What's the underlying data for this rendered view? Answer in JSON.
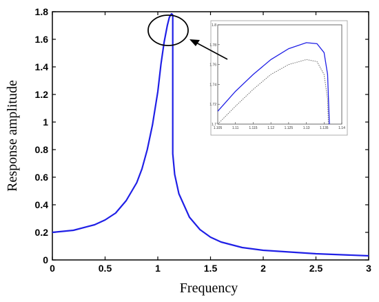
{
  "chart_data": [
    {
      "type": "line",
      "xlabel": "Frequency",
      "ylabel": "Response amplitude",
      "xlim": [
        0,
        3
      ],
      "ylim": [
        0,
        1.8
      ],
      "xticks": [
        "0",
        "0.5",
        "1",
        "1.5",
        "2",
        "2.5",
        "3"
      ],
      "yticks": [
        "0",
        "0.2",
        "0.4",
        "0.6",
        "0.8",
        "1",
        "1.2",
        "1.4",
        "1.6",
        "1.8"
      ],
      "grid": false,
      "series": [
        {
          "color": "#1f1fe6",
          "x": [
            0,
            0.2,
            0.4,
            0.5,
            0.6,
            0.7,
            0.8,
            0.85,
            0.9,
            0.95,
            1.0,
            1.03,
            1.06,
            1.09,
            1.11,
            1.13,
            1.14,
            1.142,
            1.142,
            1.16,
            1.2,
            1.3,
            1.4,
            1.5,
            1.6,
            1.8,
            2.0,
            2.5,
            3.0
          ],
          "y": [
            0.2,
            0.215,
            0.255,
            0.29,
            0.34,
            0.43,
            0.56,
            0.66,
            0.8,
            0.98,
            1.22,
            1.42,
            1.58,
            1.7,
            1.76,
            1.785,
            1.78,
            1.77,
            0.77,
            0.62,
            0.48,
            0.31,
            0.22,
            0.165,
            0.13,
            0.09,
            0.07,
            0.045,
            0.03
          ]
        }
      ],
      "annotations": [
        {
          "type": "ellipse",
          "around": "peak"
        },
        {
          "type": "arrow",
          "from": "inset",
          "to": "peak"
        }
      ]
    },
    {
      "type": "line",
      "role": "inset-zoom",
      "xlim": [
        1.105,
        1.14
      ],
      "ylim": [
        1.7,
        1.8
      ],
      "xticks": [
        "1.105",
        "1.11",
        "1.115",
        "1.12",
        "1.125",
        "1.13",
        "1.135",
        "1.14"
      ],
      "yticks": [
        "1.7",
        "1.72",
        "1.74",
        "1.76",
        "1.78",
        "1.8"
      ],
      "series": [
        {
          "color": "#1f1fe6",
          "style": "solid",
          "x": [
            1.105,
            1.11,
            1.115,
            1.12,
            1.125,
            1.13,
            1.133,
            1.135,
            1.136,
            1.1365
          ],
          "y": [
            1.713,
            1.733,
            1.75,
            1.765,
            1.776,
            1.782,
            1.781,
            1.772,
            1.75,
            1.7
          ]
        },
        {
          "color": "#666666",
          "style": "dotted",
          "x": [
            1.105,
            1.11,
            1.115,
            1.12,
            1.125,
            1.13,
            1.133,
            1.135,
            1.136,
            1.1362
          ],
          "y": [
            1.7,
            1.718,
            1.735,
            1.75,
            1.76,
            1.765,
            1.763,
            1.75,
            1.725,
            1.7
          ]
        }
      ]
    }
  ]
}
